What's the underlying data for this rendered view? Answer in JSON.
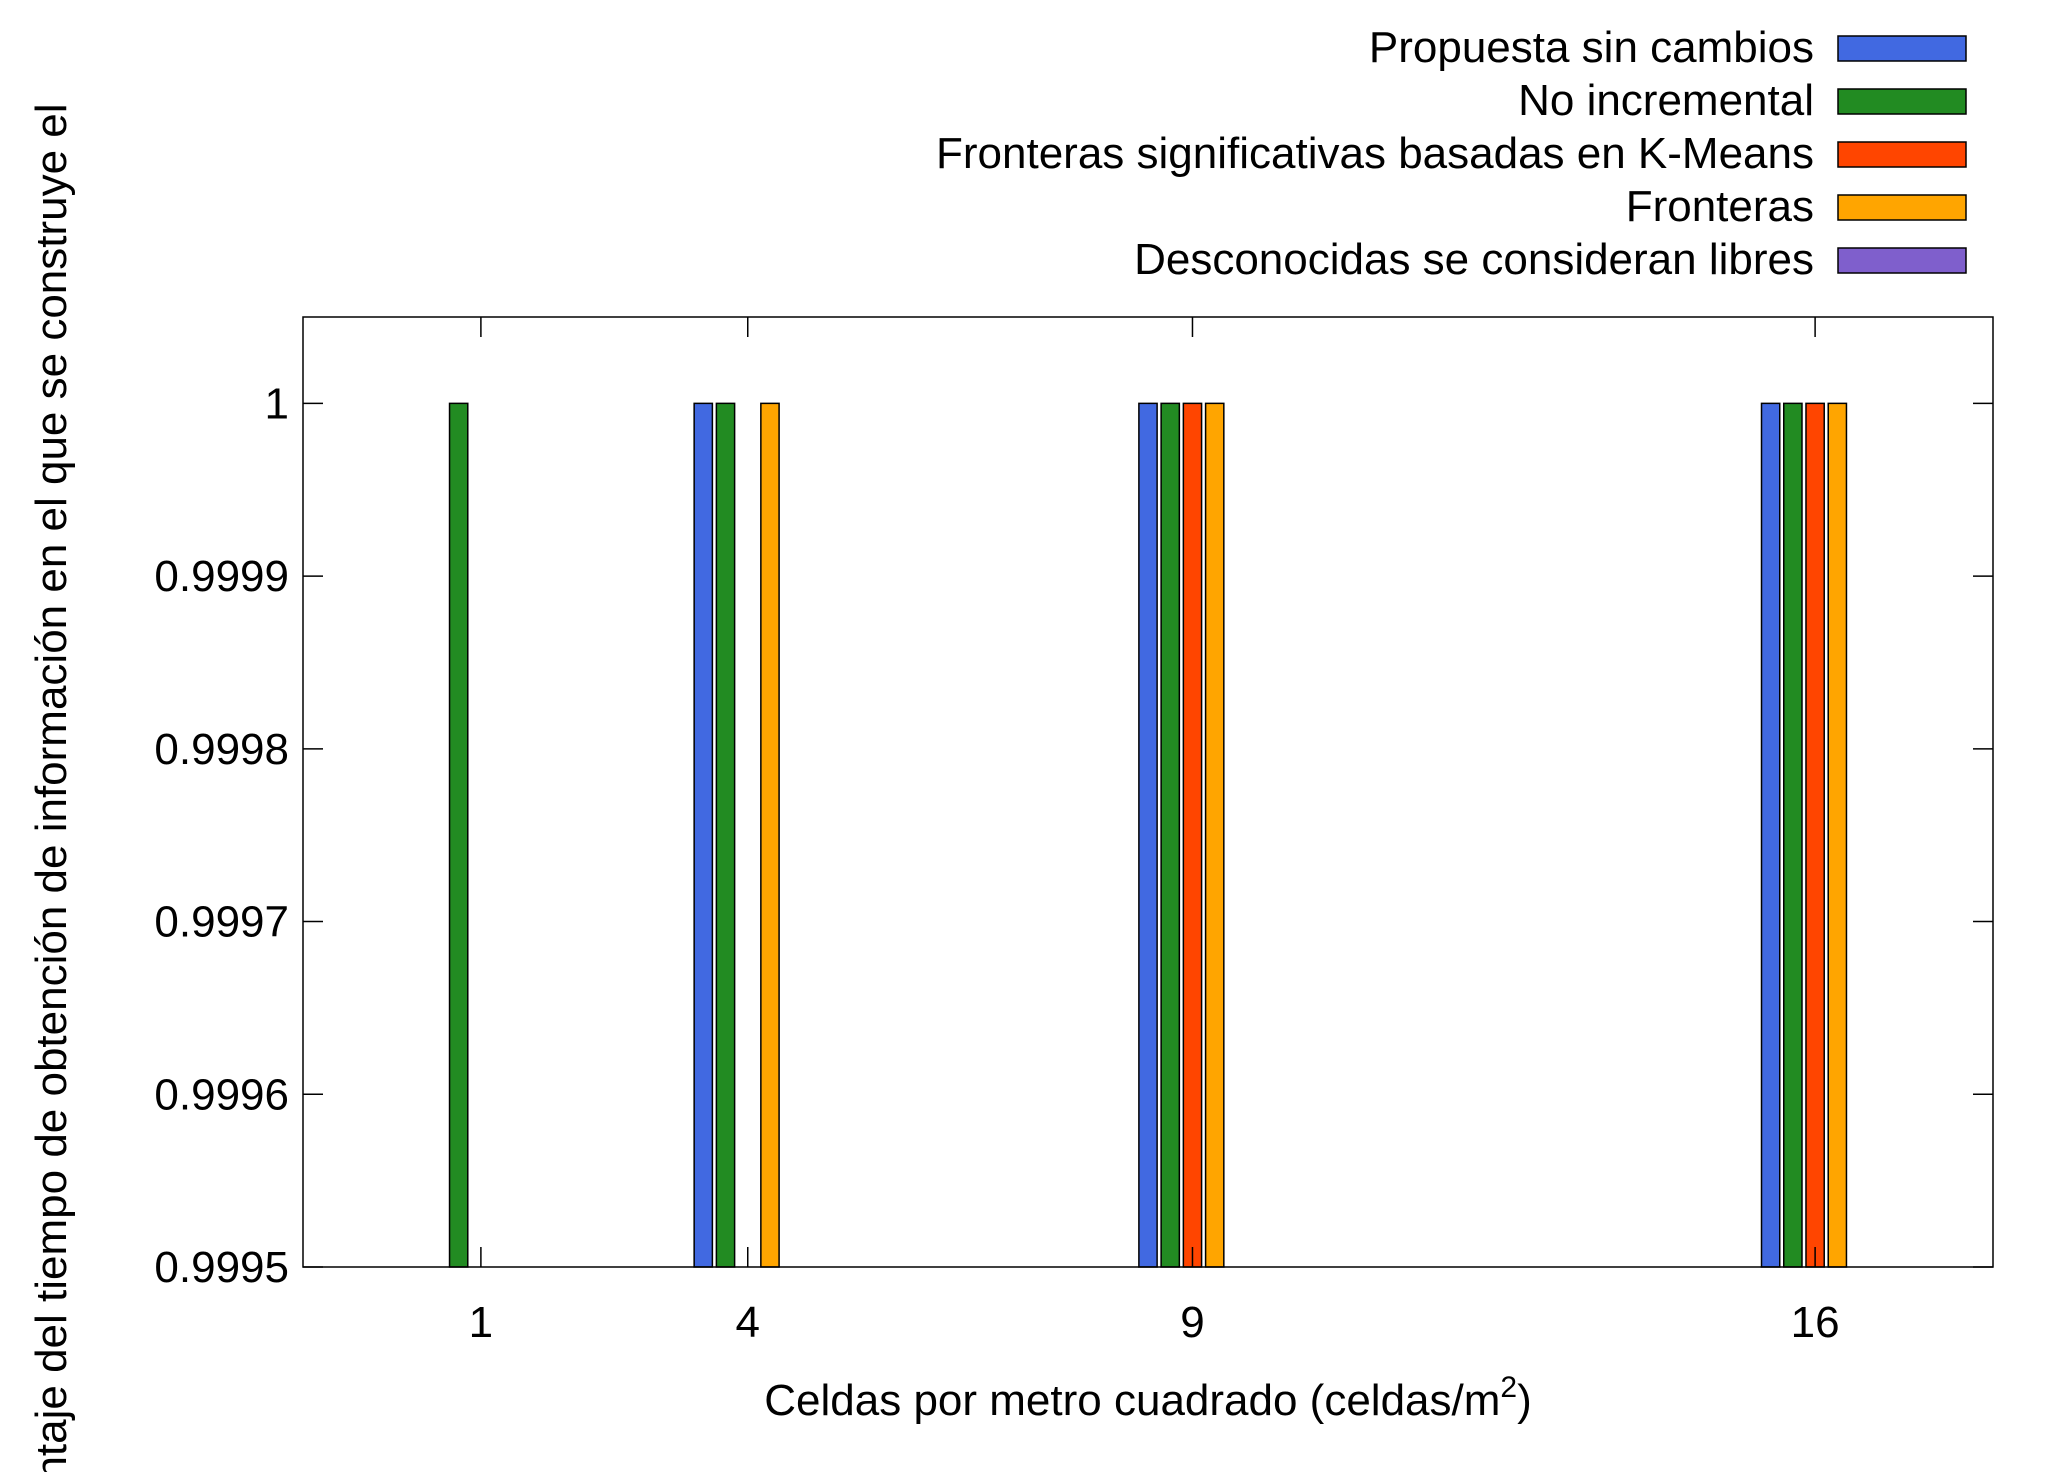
{
  "chart_data": {
    "type": "bar",
    "title": "",
    "xlabel": "Celdas por metro cuadrado (celdas/m",
    "xlabel_superscript": "2",
    "xlabel_suffix": ")",
    "ylabel": "ntaje del tiempo de obtención de información en el que se construye el",
    "categories": [
      "1",
      "4",
      "9",
      "16"
    ],
    "x": [
      1,
      4,
      9,
      16
    ],
    "xlim": [
      -1,
      18
    ],
    "ylim": [
      0.9995,
      1.00005
    ],
    "yticks": [
      0.9995,
      0.9996,
      0.9997,
      0.9998,
      0.9999,
      1
    ],
    "ytick_labels": [
      "0.9995",
      "0.9996",
      "0.9997",
      "0.9998",
      "0.9999",
      "1"
    ],
    "grid": false,
    "legend_position": "top-right, above plot",
    "series": [
      {
        "name": "Propuesta sin cambios",
        "color": "#4169e1",
        "values": [
          null,
          1,
          1,
          1
        ]
      },
      {
        "name": "No incremental",
        "color": "#228b22",
        "values": [
          1,
          1,
          1,
          1
        ]
      },
      {
        "name": "Fronteras significativas basadas en K-Means",
        "color": "#ff4500",
        "values": [
          null,
          null,
          1,
          1
        ]
      },
      {
        "name": "Fronteras",
        "color": "#ffa500",
        "values": [
          null,
          1,
          1,
          1
        ]
      },
      {
        "name": "Desconocidas se consideran libres",
        "color": "#7f5fcc",
        "values": [
          null,
          null,
          null,
          null
        ]
      }
    ]
  }
}
